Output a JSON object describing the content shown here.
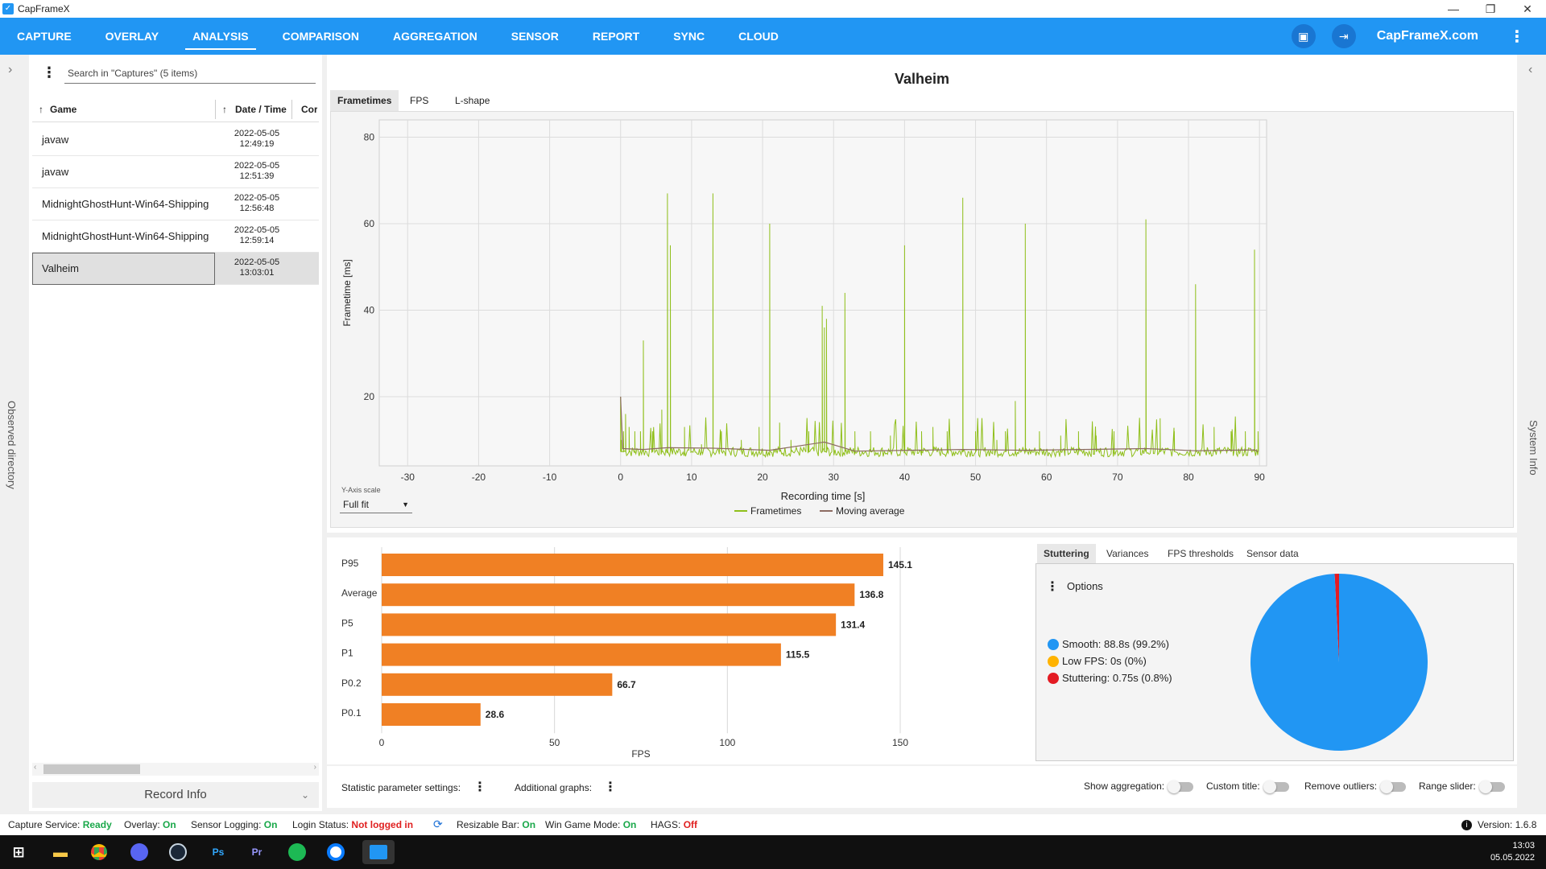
{
  "window": {
    "title": "CapFrameX"
  },
  "nav": {
    "tabs": [
      "CAPTURE",
      "OVERLAY",
      "ANALYSIS",
      "COMPARISON",
      "AGGREGATION",
      "SENSOR",
      "REPORT",
      "SYNC",
      "CLOUD"
    ],
    "active": "ANALYSIS",
    "site": "CapFrameX.com"
  },
  "side": {
    "left_label": "Observed directory",
    "right_label": "System Info"
  },
  "captures": {
    "search_placeholder": "Search in \"Captures\" (5 items)",
    "columns": [
      "Game",
      "Date / Time",
      "Cor"
    ],
    "rows": [
      {
        "game": "javaw",
        "date": "2022-05-05",
        "time": "12:49:19"
      },
      {
        "game": "javaw",
        "date": "2022-05-05",
        "time": "12:51:39"
      },
      {
        "game": "MidnightGhostHunt-Win64-Shipping",
        "date": "2022-05-05",
        "time": "12:56:48"
      },
      {
        "game": "MidnightGhostHunt-Win64-Shipping",
        "date": "2022-05-05",
        "time": "12:59:14"
      },
      {
        "game": "Valheim",
        "date": "2022-05-05",
        "time": "13:03:01",
        "selected": true
      }
    ],
    "record_info": "Record Info"
  },
  "main_chart": {
    "title": "Valheim",
    "tabs": [
      "Frametimes",
      "FPS",
      "L-shape"
    ],
    "active_tab": "Frametimes",
    "y_axis_scale_label": "Y-Axis scale",
    "y_axis_scale_value": "Full fit"
  },
  "stutter": {
    "tabs": [
      "Stuttering",
      "Variances",
      "FPS thresholds",
      "Sensor data"
    ],
    "active_tab": "Stuttering",
    "options_label": "Options",
    "legend": [
      {
        "label": "Smooth:",
        "value": "88.8s (99.2%)",
        "color": "#2196f3"
      },
      {
        "label": "Low FPS:",
        "value": "0s (0%)",
        "color": "#ffb300"
      },
      {
        "label": "Stuttering:",
        "value": "0.75s (0.8%)",
        "color": "#e31b23"
      }
    ]
  },
  "bottom_controls": {
    "stat_settings": "Statistic parameter settings:",
    "additional_graphs": "Additional graphs:",
    "toggles": [
      "Show aggregation:",
      "Custom title:",
      "Remove outliers:",
      "Range slider:"
    ]
  },
  "status": {
    "items": [
      {
        "label": "Capture Service:",
        "value": "Ready",
        "state": "green"
      },
      {
        "label": "Overlay:",
        "value": "On",
        "state": "green"
      },
      {
        "label": "Sensor Logging:",
        "value": "On",
        "state": "green"
      },
      {
        "label": "Login Status:",
        "value": "Not logged in",
        "state": "red"
      },
      {
        "label": "Resizable Bar:",
        "value": "On",
        "state": "green"
      },
      {
        "label": "Win Game Mode:",
        "value": "On",
        "state": "green"
      },
      {
        "label": "HAGS:",
        "value": "Off",
        "state": "red"
      }
    ],
    "version": "Version: 1.6.8"
  },
  "taskbar": {
    "time": "13:03",
    "date": "05.05.2022"
  },
  "chart_data": [
    {
      "type": "line",
      "title": "Valheim",
      "xlabel": "Recording time [s]",
      "ylabel": "Frametime [ms]",
      "xlim": [
        -34,
        91
      ],
      "ylim": [
        4,
        84
      ],
      "xticks": [
        -30,
        -20,
        -10,
        0,
        10,
        20,
        30,
        40,
        50,
        60,
        70,
        80,
        90
      ],
      "yticks": [
        20,
        40,
        60,
        80
      ],
      "grid": true,
      "legend_position": "bottom",
      "baseline": 7.3,
      "series": [
        {
          "name": "Frametimes",
          "color": "#8fbf1a",
          "x": [
            0,
            0.1,
            0.4,
            0.7,
            1.2,
            2.0,
            2.8,
            3.2,
            4.5,
            5.8,
            6.6,
            7.0,
            9.0,
            11.4,
            13.0,
            14.2,
            17.0,
            19.5,
            21.0,
            22.4,
            24.0,
            26.5,
            28.4,
            28.7,
            29.0,
            31.6,
            33.0,
            35.2,
            38.0,
            40.0,
            42.4,
            44.0,
            46.0,
            48.2,
            50.0,
            53.0,
            54.2,
            55.6,
            57.0,
            59.0,
            62.0,
            64.5,
            67.0,
            69.5,
            74.0,
            76.0,
            78.0,
            81.0,
            83.6,
            86.0,
            88.0,
            89.3,
            89.8
          ],
          "y": [
            20,
            10,
            12,
            16,
            13,
            12,
            12,
            33,
            12,
            17,
            67,
            55,
            13,
            9,
            67,
            12,
            10,
            13,
            60,
            14,
            10,
            12,
            41,
            36,
            38,
            44,
            12,
            12,
            11,
            55,
            12,
            13,
            12,
            66,
            12,
            10,
            12,
            19,
            60,
            12,
            11,
            12,
            11,
            12,
            61,
            15,
            12,
            46,
            13,
            12,
            12,
            54,
            12
          ]
        },
        {
          "name": "Moving average",
          "color": "#8c6b62",
          "x": [
            0,
            0.3,
            3.2,
            6.6,
            13.0,
            21.0,
            28.7,
            33.0,
            48.2,
            57.0,
            74.0,
            81.0,
            89.3,
            89.8
          ],
          "y": [
            20,
            8,
            7.8,
            8.2,
            8.1,
            7.6,
            9.5,
            7.4,
            7.8,
            7.6,
            8.0,
            7.5,
            7.7,
            7.3
          ]
        }
      ]
    },
    {
      "type": "bar",
      "orientation": "horizontal",
      "xlabel": "FPS",
      "xlim": [
        0,
        150
      ],
      "xticks": [
        0,
        50,
        100,
        150
      ],
      "categories": [
        "P95",
        "Average",
        "P5",
        "P1",
        "P0.2",
        "P0.1"
      ],
      "values": [
        145.1,
        136.8,
        131.4,
        115.5,
        66.7,
        28.6
      ],
      "color": "#f08024"
    },
    {
      "type": "pie",
      "categories": [
        "Smooth",
        "Low FPS",
        "Stuttering"
      ],
      "values": [
        99.2,
        0,
        0.8
      ],
      "colors": [
        "#2196f3",
        "#ffb300",
        "#e31b23"
      ]
    }
  ]
}
